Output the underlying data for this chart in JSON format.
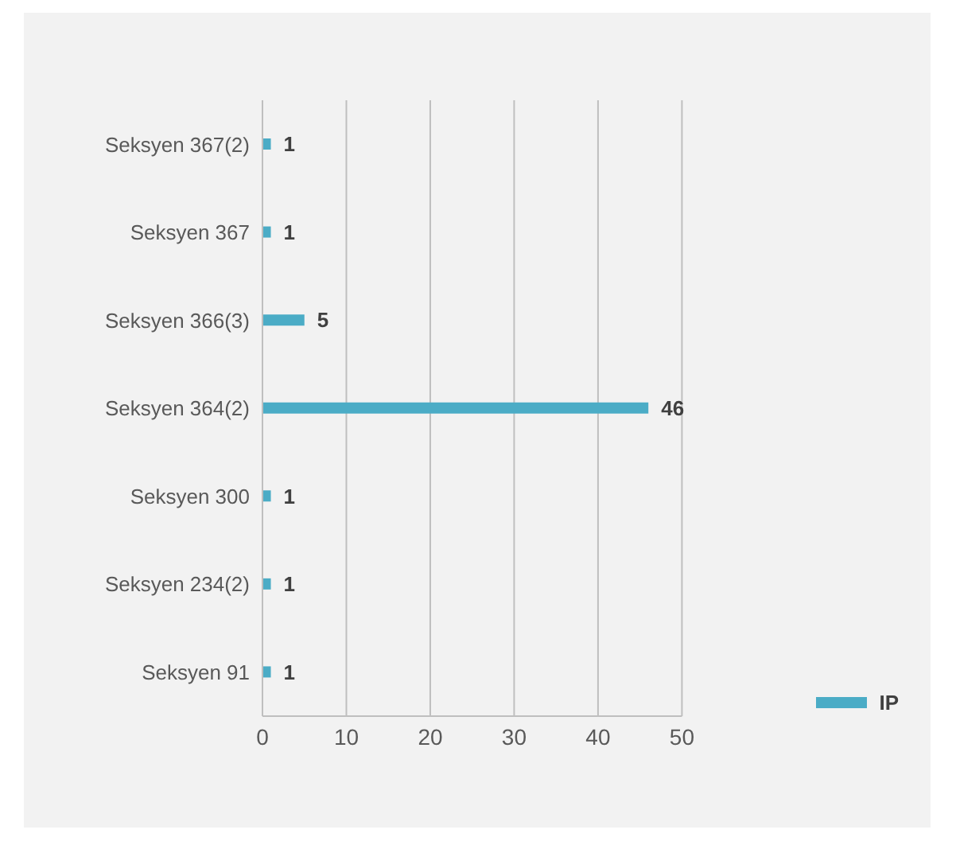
{
  "chart_data": {
    "type": "bar",
    "orientation": "horizontal",
    "categories": [
      "Seksyen 367(2)",
      "Seksyen 367",
      "Seksyen 366(3)",
      "Seksyen 364(2)",
      "Seksyen 300",
      "Seksyen 234(2)",
      "Seksyen 91"
    ],
    "series": [
      {
        "name": "IP",
        "color": "#4bacc6",
        "values": [
          1,
          1,
          5,
          46,
          1,
          1,
          1
        ]
      }
    ],
    "xlim": [
      0,
      50
    ],
    "xticks": [
      0,
      10,
      20,
      30,
      40,
      50
    ],
    "grid": "x",
    "legend": "right",
    "data_labels": true
  }
}
